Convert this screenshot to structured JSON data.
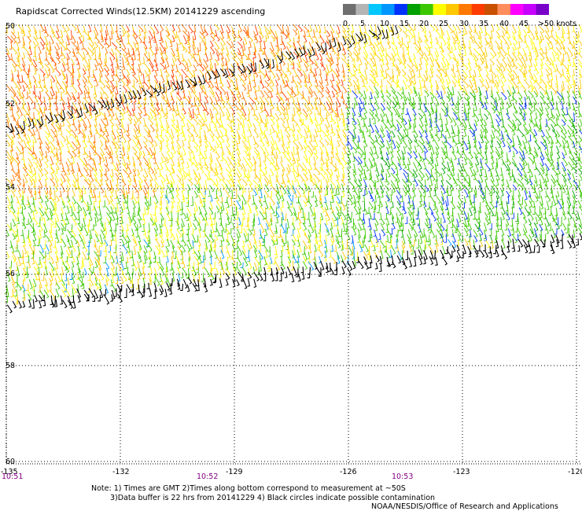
{
  "title": "Rapidscat Corrected Winds(12.5KM) 20141229 ascending",
  "legend": {
    "colors": [
      "#6e6e6e",
      "#b4b4b4",
      "#00c8ff",
      "#0096ff",
      "#0032ff",
      "#00a000",
      "#3cc800",
      "#ffff00",
      "#ffc800",
      "#ff7800",
      "#ff3c00",
      "#c85000",
      "#ff8c5a",
      "#ff00ff",
      "#c800ff",
      "#7800c8"
    ],
    "labels": [
      "0",
      "5",
      "10",
      "15",
      "20",
      "25",
      "30",
      "35",
      "40",
      "45",
      ">50 knots"
    ]
  },
  "axes": {
    "lat_labels": [
      "50",
      "52",
      "54",
      "56",
      "58",
      "60"
    ],
    "lon_labels": [
      "-135",
      "-132",
      "-129",
      "-126",
      "-123",
      "-120"
    ],
    "time_labels": [
      "10:51",
      "10:52",
      "10:53"
    ]
  },
  "notes": {
    "line1": "Note: 1) Times are GMT 2)Times along bottom correspond to measurement at ~50S",
    "line2": "3)Data buffer is 22 hrs from 20141229 4) Black circles indicate possible contamination",
    "credit": "NOAA/NESDIS/Office of Research and Applications"
  },
  "colors": {
    "time_label": "#800080",
    "grid": "#000000",
    "contamination": "#000000"
  }
}
